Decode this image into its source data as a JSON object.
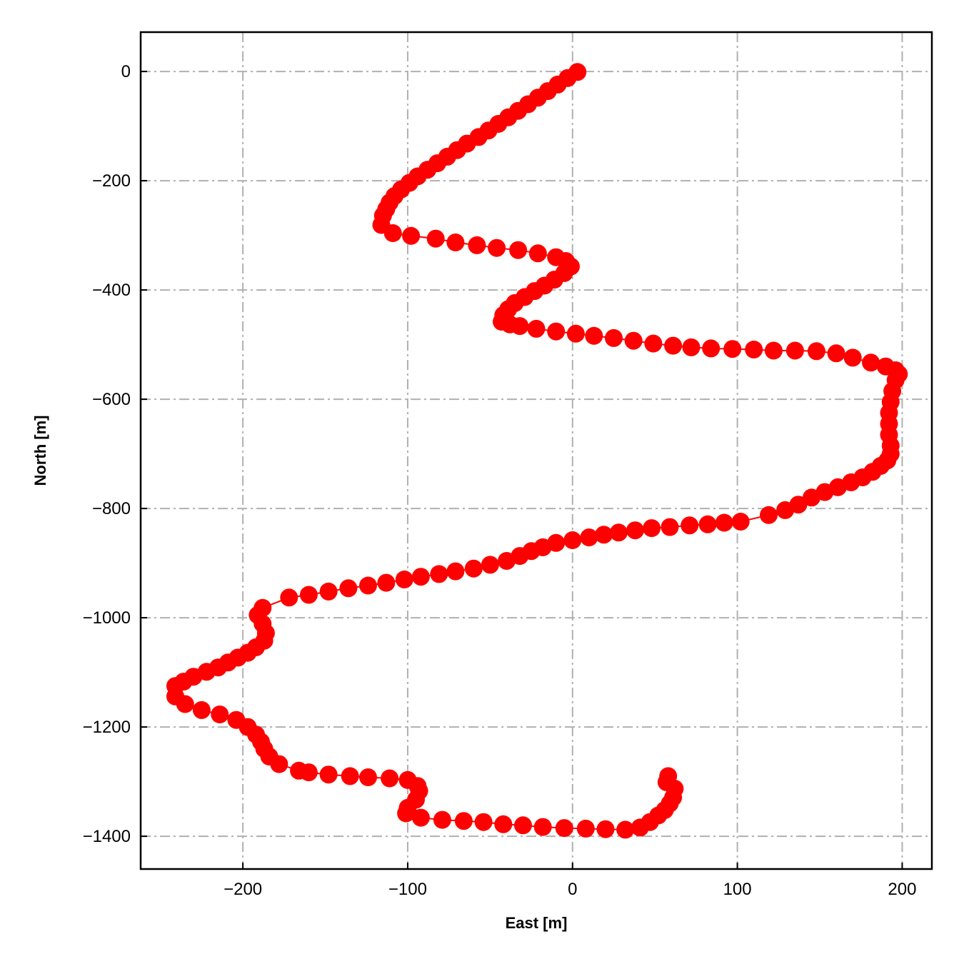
{
  "chart_data": {
    "type": "line",
    "xlabel": "East [m]",
    "ylabel": "North [m]",
    "xlim": [
      -262,
      218
    ],
    "ylim": [
      -1460,
      72
    ],
    "xticks": [
      -200,
      -100,
      0,
      100,
      200
    ],
    "yticks": [
      0,
      -200,
      -400,
      -600,
      -800,
      -1000,
      -1200,
      -1400
    ],
    "xtick_labels": [
      "−200",
      "−100",
      "0",
      "100",
      "200"
    ],
    "ytick_labels": [
      "0",
      "−200",
      "−400",
      "−600",
      "−800",
      "−1000",
      "−1200",
      "−1400"
    ],
    "grid": true,
    "marker": "circle",
    "series": [
      {
        "color": "#ff0000",
        "x": [
          3,
          -3,
          -9,
          -15,
          -21,
          -27,
          -33,
          -39,
          -45,
          -51,
          -57,
          -64,
          -70,
          -76,
          -82,
          -88,
          -94,
          -99,
          -104,
          -108,
          -111,
          -113,
          -115,
          -116,
          -109,
          -98,
          -83,
          -71,
          -58,
          -46,
          -33,
          -21,
          -10,
          -4,
          -1,
          -5,
          -11,
          -17,
          -23,
          -29,
          -35,
          -39,
          -42,
          -43,
          -38,
          -32,
          -22,
          -10,
          2,
          13,
          25,
          37,
          49,
          61,
          72,
          84,
          97,
          110,
          122,
          135,
          148,
          160,
          170,
          181,
          190,
          196,
          198,
          196,
          194,
          193,
          192,
          192,
          192,
          193,
          193,
          191,
          187,
          182,
          176,
          169,
          161,
          153,
          145,
          137,
          129,
          119,
          102,
          92,
          82,
          71,
          59,
          48,
          38,
          28,
          19,
          10,
          0,
          -10,
          -18,
          -25,
          -32,
          -40,
          -50,
          -60,
          -71,
          -81,
          -92,
          -102,
          -113,
          -124,
          -136,
          -148,
          -160,
          -172,
          -188,
          -191,
          -188,
          -186,
          -187,
          -192,
          -197,
          -203,
          -209,
          -215,
          -222,
          -230,
          -236,
          -241,
          -241,
          -235,
          -225,
          -214,
          -204,
          -197,
          -192,
          -189,
          -187,
          -184,
          -178,
          -166,
          -160,
          -148,
          -135,
          -124,
          -111,
          -100,
          -94,
          -93,
          -95,
          -100,
          -101,
          -92,
          -79,
          -66,
          -54,
          -42,
          -30,
          -18,
          -5,
          8,
          20,
          32,
          41,
          47,
          52,
          56,
          59,
          61,
          62,
          57,
          58
        ],
        "y": [
          -1,
          -12,
          -24,
          -36,
          -48,
          -60,
          -72,
          -84,
          -96,
          -108,
          -120,
          -132,
          -144,
          -156,
          -168,
          -180,
          -192,
          -204,
          -216,
          -228,
          -240,
          -252,
          -264,
          -281,
          -296,
          -301,
          -306,
          -313,
          -318,
          -323,
          -327,
          -333,
          -340,
          -347,
          -357,
          -369,
          -381,
          -392,
          -402,
          -413,
          -424,
          -435,
          -446,
          -458,
          -463,
          -466,
          -471,
          -476,
          -480,
          -484,
          -488,
          -493,
          -498,
          -502,
          -505,
          -507,
          -508,
          -509,
          -511,
          -511,
          -512,
          -516,
          -524,
          -533,
          -540,
          -547,
          -554,
          -565,
          -585,
          -605,
          -625,
          -645,
          -665,
          -685,
          -700,
          -712,
          -722,
          -733,
          -743,
          -752,
          -761,
          -770,
          -780,
          -793,
          -803,
          -812,
          -824,
          -826,
          -829,
          -831,
          -834,
          -836,
          -840,
          -844,
          -848,
          -853,
          -858,
          -863,
          -871,
          -878,
          -887,
          -896,
          -903,
          -910,
          -915,
          -920,
          -925,
          -930,
          -936,
          -941,
          -946,
          -952,
          -958,
          -963,
          -982,
          -995,
          -1011,
          -1028,
          -1042,
          -1054,
          -1064,
          -1073,
          -1082,
          -1091,
          -1099,
          -1108,
          -1117,
          -1125,
          -1144,
          -1158,
          -1169,
          -1177,
          -1187,
          -1200,
          -1214,
          -1227,
          -1240,
          -1254,
          -1268,
          -1280,
          -1283,
          -1287,
          -1290,
          -1292,
          -1294,
          -1297,
          -1308,
          -1317,
          -1333,
          -1348,
          -1358,
          -1366,
          -1370,
          -1372,
          -1374,
          -1378,
          -1380,
          -1383,
          -1385,
          -1386,
          -1387,
          -1388,
          -1384,
          -1374,
          -1362,
          -1352,
          -1340,
          -1329,
          -1313,
          -1301,
          -1290
        ]
      }
    ]
  }
}
